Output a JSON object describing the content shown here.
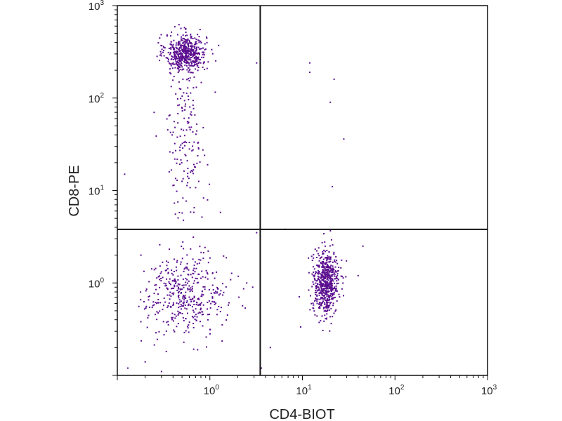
{
  "chart_data": {
    "type": "scatter",
    "title": "",
    "xlabel": "CD4-BIOT",
    "ylabel": "CD8-PE",
    "xscale": "log",
    "yscale": "log",
    "xlim": [
      0.1,
      1000
    ],
    "ylim": [
      0.1,
      1000
    ],
    "x_ticks": [
      {
        "value": 1,
        "base": "10",
        "exp": "0"
      },
      {
        "value": 10,
        "base": "10",
        "exp": "1"
      },
      {
        "value": 100,
        "base": "10",
        "exp": "2"
      },
      {
        "value": 1000,
        "base": "10",
        "exp": "3"
      }
    ],
    "y_ticks": [
      {
        "value": 1,
        "base": "10",
        "exp": "0"
      },
      {
        "value": 10,
        "base": "10",
        "exp": "1"
      },
      {
        "value": 100,
        "base": "10",
        "exp": "2"
      },
      {
        "value": 1000,
        "base": "10",
        "exp": "3"
      }
    ],
    "quadrant_gates": {
      "x": 3.5,
      "y": 3.8
    },
    "point_color": "#5b0f8f",
    "line_color": "#111111",
    "grid": false,
    "legend": "none",
    "populations": [
      {
        "name": "",
        "center": [
          0.55,
          310
        ],
        "spread_log": [
          0.11,
          0.1
        ],
        "count": 520
      },
      {
        "name": "",
        "center": [
          0.55,
          40
        ],
        "spread_log": [
          0.11,
          0.45
        ],
        "count": 170
      },
      {
        "name": "",
        "center": [
          0.55,
          0.75
        ],
        "spread_log": [
          0.22,
          0.22
        ],
        "count": 420
      },
      {
        "name": "",
        "center": [
          18,
          1.0
        ],
        "spread_log": [
          0.07,
          0.17
        ],
        "count": 620
      }
    ],
    "scattered_points": [
      [
        12,
        240
      ],
      [
        12,
        190
      ],
      [
        22,
        160
      ],
      [
        20,
        90
      ],
      [
        28,
        36
      ],
      [
        21,
        11
      ],
      [
        3.2,
        240
      ],
      [
        3.6,
        0.12
      ],
      [
        4.5,
        0.2
      ],
      [
        3.2,
        3.5
      ],
      [
        6.5,
        3.8
      ],
      [
        0.13,
        0.12
      ],
      [
        0.2,
        0.14
      ],
      [
        0.3,
        0.11
      ],
      [
        45,
        2.5
      ],
      [
        40,
        1.2
      ],
      [
        0.12,
        15
      ],
      [
        0.25,
        70
      ],
      [
        1.3,
        5.8
      ],
      [
        0.18,
        2.0
      ],
      [
        2.5,
        1.0
      ],
      [
        2.9,
        0.9
      ]
    ]
  }
}
